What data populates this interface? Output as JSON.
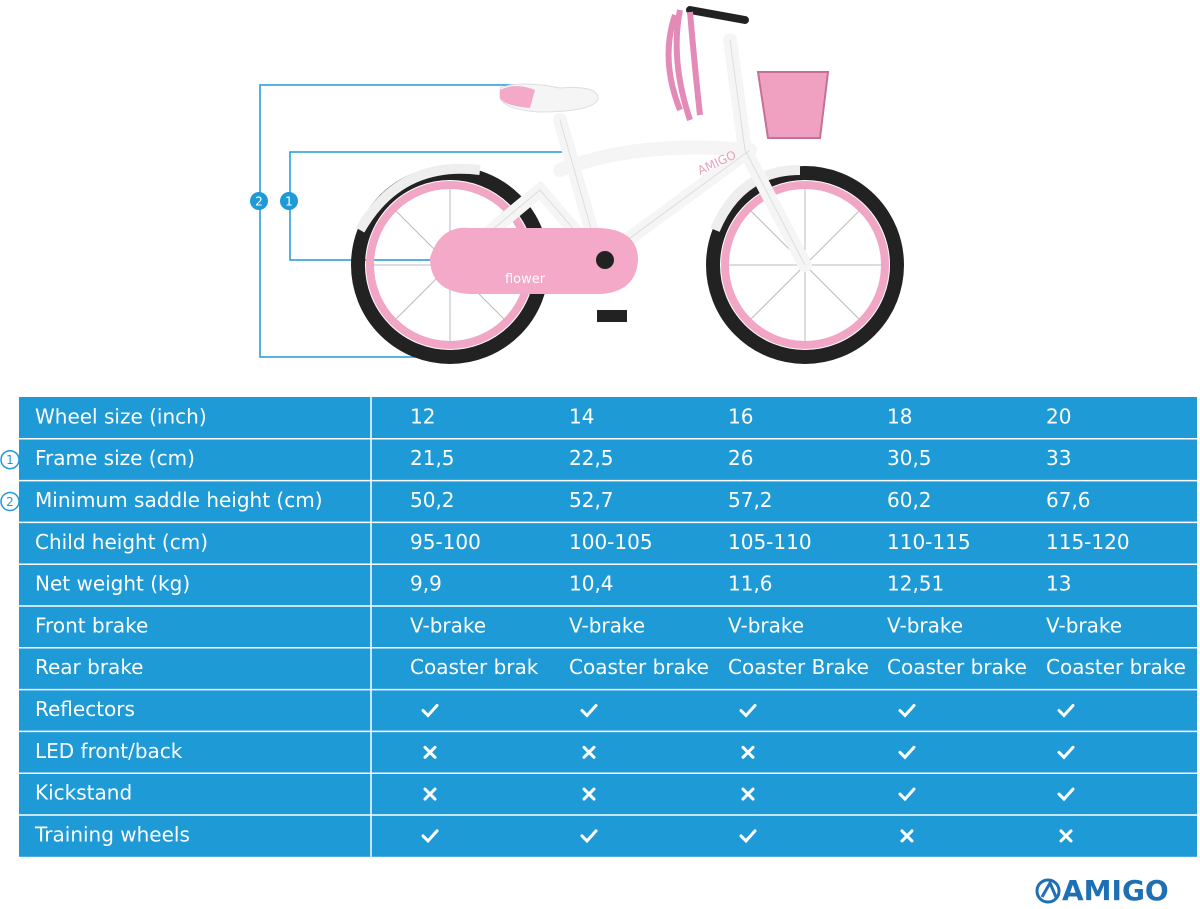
{
  "diagram": {
    "markers": [
      {
        "label": "2"
      },
      {
        "label": "1"
      }
    ],
    "chainguard_text": "flower",
    "frame_text": "AMIGO"
  },
  "table": {
    "rows": [
      {
        "label": "Wheel size (inch)",
        "cells": [
          "12",
          "14",
          "16",
          "18",
          "20"
        ]
      },
      {
        "label": "Frame size (cm)",
        "marker": "1",
        "cells": [
          "21,5",
          "22,5",
          "26",
          "30,5",
          "33"
        ]
      },
      {
        "label": "Minimum saddle height (cm)",
        "marker": "2",
        "cells": [
          "50,2",
          "52,7",
          "57,2",
          "60,2",
          "67,6"
        ]
      },
      {
        "label": "Child height (cm)",
        "cells": [
          "95-100",
          "100-105",
          "105-110",
          "110-115",
          "115-120"
        ]
      },
      {
        "label": "Net weight (kg)",
        "cells": [
          "9,9",
          "10,4",
          "11,6",
          "12,51",
          "13"
        ]
      },
      {
        "label": "Front brake",
        "cells": [
          "V-brake",
          "V-brake",
          "V-brake",
          "V-brake",
          "V-brake"
        ]
      },
      {
        "label": "Rear brake",
        "cells": [
          "Coaster brak",
          "Coaster brake",
          "Coaster Brake",
          "Coaster brake",
          "Coaster brake"
        ]
      },
      {
        "label": "Reflectors",
        "cells": [
          true,
          true,
          true,
          true,
          true
        ]
      },
      {
        "label": "LED front/back",
        "cells": [
          false,
          false,
          false,
          true,
          true
        ]
      },
      {
        "label": "Kickstand",
        "cells": [
          false,
          false,
          false,
          true,
          true
        ]
      },
      {
        "label": "Training wheels",
        "cells": [
          true,
          true,
          true,
          false,
          false
        ]
      }
    ]
  },
  "logo": "AMIGO"
}
